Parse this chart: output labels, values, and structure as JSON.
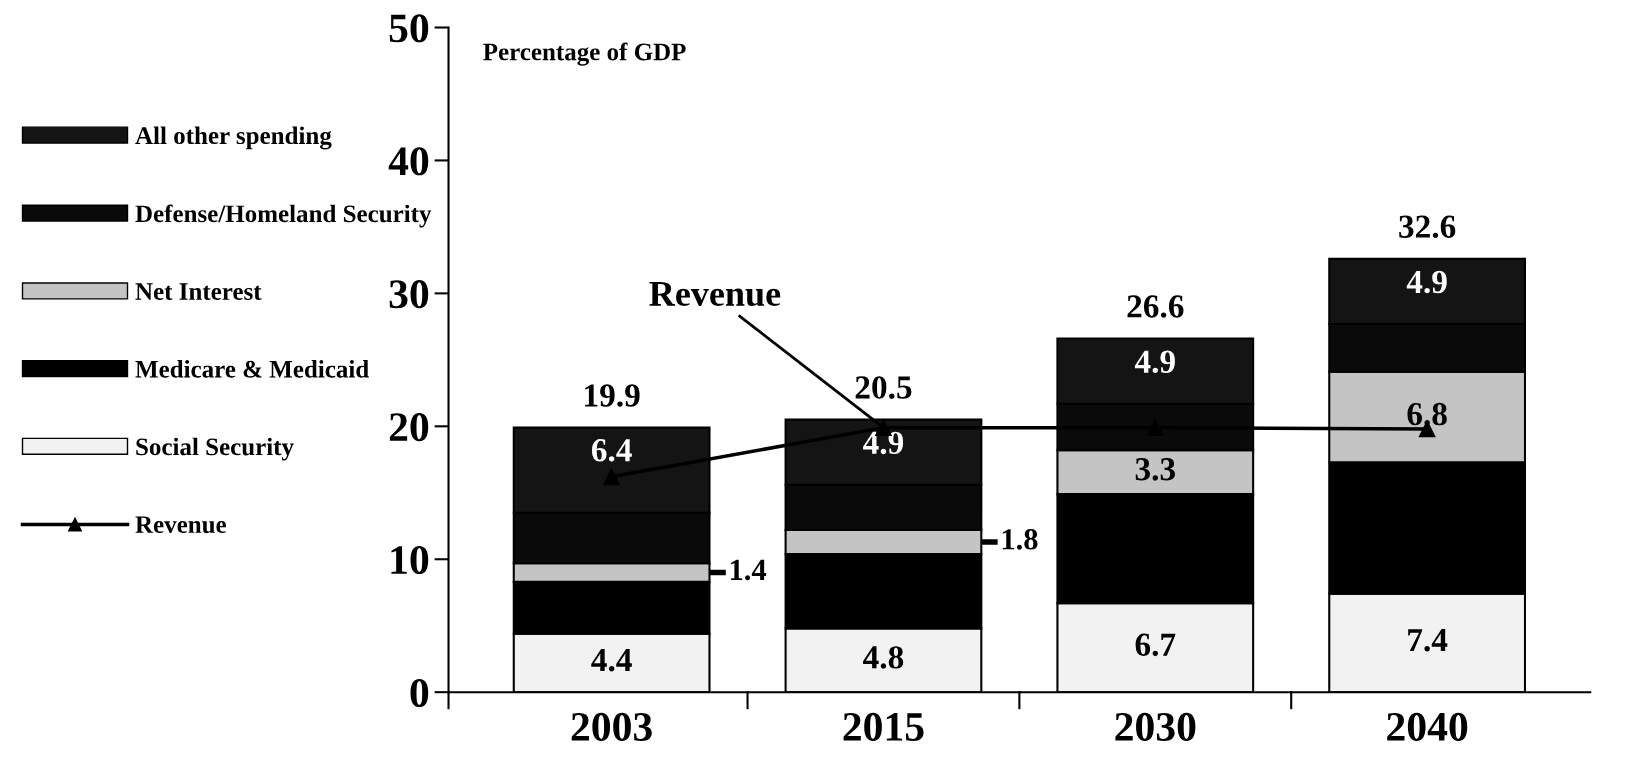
{
  "chart_data": {
    "type": "bar",
    "stacked": true,
    "ylabel": "Percentage of GDP",
    "categories": [
      "2003",
      "2015",
      "2030",
      "2040"
    ],
    "ylim": [
      0,
      50
    ],
    "yticks": [
      0,
      10,
      20,
      30,
      40,
      50
    ],
    "grid": false,
    "legend": "left",
    "totals": [
      "19.9",
      "20.5",
      "26.6",
      "32.6"
    ],
    "series": [
      {
        "name": "Social Security",
        "color": "#f2f2f2",
        "values": [
          4.4,
          4.8,
          6.7,
          7.4
        ],
        "value_labels": [
          "4.4",
          "4.8",
          "6.7",
          "7.4"
        ]
      },
      {
        "name": "Medicare & Medicaid",
        "color": "#000000",
        "values": [
          3.9,
          5.6,
          8.2,
          9.9
        ],
        "value_labels": [
          null,
          null,
          null,
          null
        ]
      },
      {
        "name": "Net Interest",
        "color": "#c4c4c4",
        "values": [
          1.4,
          1.8,
          3.3,
          6.8
        ],
        "value_labels": [
          "1.4",
          "1.8",
          "3.3",
          "6.8"
        ]
      },
      {
        "name": "Defense/Homeland Security",
        "color": "#0a0a0a",
        "values": [
          3.8,
          3.4,
          3.5,
          3.6
        ],
        "value_labels": [
          null,
          null,
          null,
          null
        ]
      },
      {
        "name": "All other spending",
        "color": "#141414",
        "values": [
          6.4,
          4.9,
          4.9,
          4.9
        ],
        "value_labels": [
          "6.4",
          "4.9",
          "4.9",
          "4.9"
        ]
      },
      {
        "name": "Revenue",
        "type": "line",
        "color": "#000000",
        "marker": "triangle",
        "values": [
          16.2,
          19.9,
          19.9,
          19.8
        ]
      }
    ],
    "annotations": [
      {
        "text": "Revenue",
        "x": "2015",
        "y": 19.9
      }
    ]
  }
}
